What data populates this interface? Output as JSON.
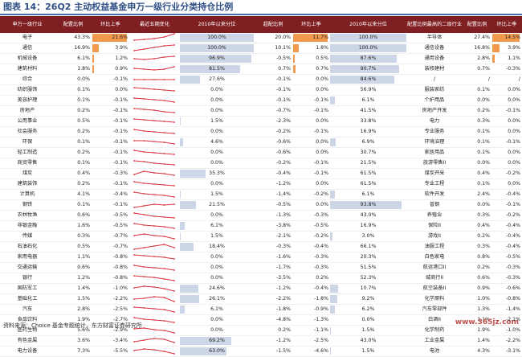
{
  "title": "图表 14：26Q2 主动权益基金申万一级行业分类持仓比例",
  "source": "资料来源：Choice 基金专题统计，东方财富证券研究所",
  "watermark": "www.365jz.com",
  "colors": {
    "header_bg": "#7f1f21",
    "header_text": "#ffffff",
    "bar": "#f19a4e",
    "pct_fill": "#cdd6e6",
    "spark": "#d9303a",
    "title": "#2f4f86"
  },
  "chart_data": {
    "type": "table",
    "columns": [
      "申万一级行业",
      "配置比例",
      "环比上季",
      "最近五期变化",
      "2010年以来分位",
      "超配比例",
      "环比上季",
      "2010年以来分位",
      "配置比例最高的二级行业",
      "配置比例",
      "环比上季"
    ],
    "rows": [
      {
        "industry": "电子",
        "weight": "43.3%",
        "qoq": "21.6%",
        "qoq_v": 21.6,
        "trend": [
          2,
          3,
          4,
          6,
          10
        ],
        "pct": "100.0%",
        "pct_v": 100,
        "over": "20.0%",
        "over_qoq": "11.7%",
        "over_qoq_v": 11.7,
        "over_pct": "100.0%",
        "over_pct_v": 100,
        "sub": "半导体",
        "sub_w": "27.4%",
        "sub_qoq": "14.5%",
        "sub_qoq_v": 14.5
      },
      {
        "industry": "通信",
        "weight": "16.9%",
        "qoq": "3.9%",
        "qoq_v": 3.9,
        "trend": [
          2,
          4,
          6,
          8,
          9
        ],
        "pct": "100.0%",
        "pct_v": 100,
        "over": "10.1%",
        "over_qoq": "1.8%",
        "over_qoq_v": 1.8,
        "over_pct": "100.0%",
        "over_pct_v": 100,
        "sub": "通信设备",
        "sub_w": "16.8%",
        "sub_qoq": "3.9%",
        "sub_qoq_v": 3.9
      },
      {
        "industry": "机械设备",
        "weight": "6.1%",
        "qoq": "1.2%",
        "qoq_v": 1.2,
        "trend": [
          5,
          4,
          5,
          7,
          8
        ],
        "pct": "96.9%",
        "pct_v": 96.9,
        "over": "-0.5%",
        "over_qoq": "0.5%",
        "over_qoq_v": 0.5,
        "over_pct": "87.6%",
        "over_pct_v": 87.6,
        "sub": "通用设备",
        "sub_w": "2.8%",
        "sub_qoq": "1.1%",
        "sub_qoq_v": 1.1
      },
      {
        "industry": "建筑材料",
        "weight": "1.8%",
        "qoq": "0.9%",
        "qoq_v": 0.9,
        "trend": [
          6,
          5,
          4,
          5,
          8
        ],
        "pct": "81.5%",
        "pct_v": 81.5,
        "over": "0.7%",
        "over_qoq": "0.7%",
        "over_qoq_v": 0.7,
        "over_pct": "90.7%",
        "over_pct_v": 90.7,
        "sub": "装修建材",
        "sub_w": "0.7%",
        "sub_qoq": "-0.3%",
        "sub_qoq_v": 0
      },
      {
        "industry": "综合",
        "weight": "0.0%",
        "qoq": "-0.1%",
        "qoq_v": 0,
        "trend": [
          5,
          5,
          5,
          5,
          5
        ],
        "pct": "27.6%",
        "pct_v": 27.6,
        "over": "-0.1%",
        "over_qoq": "0.0%",
        "over_qoq_v": 0,
        "over_pct": "84.6%",
        "over_pct_v": 84.6,
        "sub": "/",
        "sub_w": "/",
        "sub_qoq": "/",
        "sub_qoq_v": 0
      },
      {
        "industry": "纺织服饰",
        "weight": "0.1%",
        "qoq": "0.0%",
        "qoq_v": 0,
        "trend": [
          8,
          7,
          6,
          5,
          4
        ],
        "pct": "0.0%",
        "pct_v": 0,
        "over": "-0.1%",
        "over_qoq": "0.0%",
        "over_qoq_v": 0,
        "over_pct": "56.9%",
        "over_pct_v": 0,
        "sub": "服装家纺",
        "sub_w": "0.1%",
        "sub_qoq": "0.0%",
        "sub_qoq_v": 0
      },
      {
        "industry": "美容护理",
        "weight": "0.1%",
        "qoq": "-0.1%",
        "qoq_v": 0,
        "trend": [
          8,
          7,
          6,
          5,
          3
        ],
        "pct": "0.0%",
        "pct_v": 0,
        "over": "-0.1%",
        "over_qoq": "-0.1%",
        "over_qoq_v": 0,
        "over_pct": "6.1%",
        "over_pct_v": 6.1,
        "sub": "个护用品",
        "sub_w": "0.0%",
        "sub_qoq": "0.0%",
        "sub_qoq_v": 0
      },
      {
        "industry": "房地产",
        "weight": "0.2%",
        "qoq": "-0.1%",
        "qoq_v": 0,
        "trend": [
          8,
          7,
          6,
          4,
          3
        ],
        "pct": "0.0%",
        "pct_v": 0,
        "over": "-0.7%",
        "over_qoq": "-0.1%",
        "over_qoq_v": 0,
        "over_pct": "41.5%",
        "over_pct_v": 0,
        "sub": "房地产开发",
        "sub_w": "0.2%",
        "sub_qoq": "-0.1%",
        "sub_qoq_v": 0
      },
      {
        "industry": "公用事业",
        "weight": "0.5%",
        "qoq": "-0.1%",
        "qoq_v": 0,
        "trend": [
          8,
          7,
          6,
          5,
          4
        ],
        "pct": "1.5%",
        "pct_v": 1.5,
        "over": "-2.3%",
        "over_qoq": "0.0%",
        "over_qoq_v": 0,
        "over_pct": "33.8%",
        "over_pct_v": 0,
        "sub": "电力",
        "sub_w": "0.3%",
        "sub_qoq": "0.0%",
        "sub_qoq_v": 0
      },
      {
        "industry": "社会服务",
        "weight": "0.2%",
        "qoq": "-0.1%",
        "qoq_v": 0,
        "trend": [
          8,
          6,
          5,
          4,
          3
        ],
        "pct": "0.0%",
        "pct_v": 0,
        "over": "-0.2%",
        "over_qoq": "-0.1%",
        "over_qoq_v": 0,
        "over_pct": "16.9%",
        "over_pct_v": 0,
        "sub": "专业服务",
        "sub_w": "0.1%",
        "sub_qoq": "0.0%",
        "sub_qoq_v": 0
      },
      {
        "industry": "环保",
        "weight": "0.1%",
        "qoq": "-0.1%",
        "qoq_v": 0,
        "trend": [
          7,
          7,
          6,
          5,
          3
        ],
        "pct": "4.6%",
        "pct_v": 4.6,
        "over": "-0.6%",
        "over_qoq": "0.0%",
        "over_qoq_v": 0,
        "over_pct": "6.9%",
        "over_pct_v": 6.9,
        "sub": "环境治理",
        "sub_w": "0.1%",
        "sub_qoq": "-0.1%",
        "sub_qoq_v": 0
      },
      {
        "industry": "轻工制造",
        "weight": "0.2%",
        "qoq": "-0.1%",
        "qoq_v": 0,
        "trend": [
          8,
          6,
          5,
          4,
          3
        ],
        "pct": "0.0%",
        "pct_v": 0,
        "over": "-0.6%",
        "over_qoq": "0.0%",
        "over_qoq_v": 0,
        "over_pct": "30.7%",
        "over_pct_v": 0,
        "sub": "家居用品",
        "sub_w": "0.1%",
        "sub_qoq": "0.0%",
        "sub_qoq_v": 0
      },
      {
        "industry": "商贸零售",
        "weight": "0.1%",
        "qoq": "-0.1%",
        "qoq_v": 0,
        "trend": [
          8,
          7,
          5,
          4,
          3
        ],
        "pct": "0.0%",
        "pct_v": 0,
        "over": "-0.2%",
        "over_qoq": "-0.1%",
        "over_qoq_v": 0,
        "over_pct": "21.5%",
        "over_pct_v": 0,
        "sub": "旅游零售II",
        "sub_w": "0.0%",
        "sub_qoq": "0.0%",
        "sub_qoq_v": 0
      },
      {
        "industry": "煤炭",
        "weight": "0.4%",
        "qoq": "-0.3%",
        "qoq_v": 0,
        "trend": [
          4,
          8,
          6,
          5,
          3
        ],
        "pct": "35.3%",
        "pct_v": 35.3,
        "over": "-0.4%",
        "over_qoq": "-0.1%",
        "over_qoq_v": 0,
        "over_pct": "61.5%",
        "over_pct_v": 0,
        "sub": "煤炭开采",
        "sub_w": "0.4%",
        "sub_qoq": "-0.2%",
        "sub_qoq_v": 0
      },
      {
        "industry": "建筑装饰",
        "weight": "0.2%",
        "qoq": "-0.1%",
        "qoq_v": 0,
        "trend": [
          8,
          6,
          5,
          4,
          3
        ],
        "pct": "0.0%",
        "pct_v": 0,
        "over": "-1.2%",
        "over_qoq": "0.0%",
        "over_qoq_v": 0,
        "over_pct": "61.5%",
        "over_pct_v": 0,
        "sub": "专业工程",
        "sub_w": "0.1%",
        "sub_qoq": "0.0%",
        "sub_qoq_v": 0
      },
      {
        "industry": "计算机",
        "weight": "4.1%",
        "qoq": "-0.4%",
        "qoq_v": 0,
        "trend": [
          8,
          6,
          5,
          4,
          2
        ],
        "pct": "1.5%",
        "pct_v": 1.5,
        "over": "-1.4%",
        "over_qoq": "-0.2%",
        "over_qoq_v": 0,
        "over_pct": "6.1%",
        "over_pct_v": 6.1,
        "sub": "软件开发",
        "sub_w": "2.4%",
        "sub_qoq": "-0.4%",
        "sub_qoq_v": 0
      },
      {
        "industry": "钢铁",
        "weight": "0.1%",
        "qoq": "-0.1%",
        "qoq_v": 0,
        "trend": [
          2,
          4,
          6,
          5,
          6
        ],
        "pct": "21.5%",
        "pct_v": 21.5,
        "over": "-0.5%",
        "over_qoq": "0.0%",
        "over_qoq_v": 0,
        "over_pct": "93.8%",
        "over_pct_v": 93.8,
        "sub": "普钢",
        "sub_w": "0.0%",
        "sub_qoq": "-0.1%",
        "sub_qoq_v": 0
      },
      {
        "industry": "农林牧渔",
        "weight": "0.6%",
        "qoq": "-0.5%",
        "qoq_v": 0,
        "trend": [
          8,
          6,
          4,
          3,
          2
        ],
        "pct": "0.0%",
        "pct_v": 0,
        "over": "-1.3%",
        "over_qoq": "-0.3%",
        "over_qoq_v": 0,
        "over_pct": "43.0%",
        "over_pct_v": 0,
        "sub": "养殖业",
        "sub_w": "0.3%",
        "sub_qoq": "-0.2%",
        "sub_qoq_v": 0
      },
      {
        "industry": "非银金融",
        "weight": "1.6%",
        "qoq": "-0.5%",
        "qoq_v": 0,
        "trend": [
          8,
          6,
          5,
          4,
          2
        ],
        "pct": "6.1%",
        "pct_v": 6.1,
        "over": "-3.8%",
        "over_qoq": "-0.5%",
        "over_qoq_v": 0,
        "over_pct": "16.9%",
        "over_pct_v": 0,
        "sub": "保险II",
        "sub_w": "0.4%",
        "sub_qoq": "-0.4%",
        "sub_qoq_v": 0
      },
      {
        "industry": "传媒",
        "weight": "0.3%",
        "qoq": "-0.7%",
        "qoq_v": 0,
        "trend": [
          6,
          8,
          6,
          5,
          2
        ],
        "pct": "1.5%",
        "pct_v": 1.5,
        "over": "-2.1%",
        "over_qoq": "-0.2%",
        "over_qoq_v": 0,
        "over_pct": "3.0%",
        "over_pct_v": 3.0,
        "sub": "游戏II",
        "sub_w": "0.2%",
        "sub_qoq": "-0.4%",
        "sub_qoq_v": 0
      },
      {
        "industry": "石油石化",
        "weight": "0.5%",
        "qoq": "-0.7%",
        "qoq_v": 0,
        "trend": [
          2,
          4,
          6,
          8,
          4
        ],
        "pct": "18.4%",
        "pct_v": 18.4,
        "over": "-0.3%",
        "over_qoq": "-0.4%",
        "over_qoq_v": 0,
        "over_pct": "66.1%",
        "over_pct_v": 0,
        "sub": "油服工程",
        "sub_w": "0.3%",
        "sub_qoq": "-0.4%",
        "sub_qoq_v": 0
      },
      {
        "industry": "家用电器",
        "weight": "1.1%",
        "qoq": "-0.8%",
        "qoq_v": 0,
        "trend": [
          8,
          7,
          6,
          5,
          3
        ],
        "pct": "0.0%",
        "pct_v": 0,
        "over": "-1.6%",
        "over_qoq": "-0.3%",
        "over_qoq_v": 0,
        "over_pct": "20.3%",
        "over_pct_v": 0,
        "sub": "白色家电",
        "sub_w": "0.8%",
        "sub_qoq": "-0.5%",
        "sub_qoq_v": 0
      },
      {
        "industry": "交通运输",
        "weight": "0.6%",
        "qoq": "-0.8%",
        "qoq_v": 0,
        "trend": [
          8,
          6,
          5,
          4,
          2
        ],
        "pct": "0.0%",
        "pct_v": 0,
        "over": "-1.7%",
        "over_qoq": "-0.3%",
        "over_qoq_v": 0,
        "over_pct": "51.5%",
        "over_pct_v": 0,
        "sub": "航运港口II",
        "sub_w": "0.2%",
        "sub_qoq": "-0.3%",
        "sub_qoq_v": 0
      },
      {
        "industry": "银行",
        "weight": "1.2%",
        "qoq": "-0.8%",
        "qoq_v": 0,
        "trend": [
          8,
          7,
          6,
          4,
          2
        ],
        "pct": "0.0%",
        "pct_v": 0,
        "over": "-3.5%",
        "over_qoq": "0.2%",
        "over_qoq_v": 0,
        "over_pct": "52.3%",
        "over_pct_v": 0,
        "sub": "城商行II",
        "sub_w": "0.6%",
        "sub_qoq": "-0.3%",
        "sub_qoq_v": 0
      },
      {
        "industry": "国防军工",
        "weight": "1.4%",
        "qoq": "-1.0%",
        "qoq_v": 0,
        "trend": [
          6,
          8,
          7,
          5,
          2
        ],
        "pct": "24.6%",
        "pct_v": 24.6,
        "over": "-1.2%",
        "over_qoq": "-0.4%",
        "over_qoq_v": 0,
        "over_pct": "10.7%",
        "over_pct_v": 10.7,
        "sub": "航空装备II",
        "sub_w": "0.9%",
        "sub_qoq": "-0.6%",
        "sub_qoq_v": 0
      },
      {
        "industry": "基础化工",
        "weight": "1.5%",
        "qoq": "-2.2%",
        "qoq_v": 0,
        "trend": [
          5,
          6,
          8,
          7,
          2
        ],
        "pct": "26.1%",
        "pct_v": 26.1,
        "over": "-2.2%",
        "over_qoq": "-1.8%",
        "over_qoq_v": 0,
        "over_pct": "9.2%",
        "over_pct_v": 9.2,
        "sub": "化学原料",
        "sub_w": "1.0%",
        "sub_qoq": "-0.8%",
        "sub_qoq_v": 0
      },
      {
        "industry": "汽车",
        "weight": "2.8%",
        "qoq": "-2.5%",
        "qoq_v": 0,
        "trend": [
          8,
          7,
          6,
          5,
          2
        ],
        "pct": "6.1%",
        "pct_v": 6.1,
        "over": "-1.8%",
        "over_qoq": "-0.9%",
        "over_qoq_v": 0,
        "over_pct": "6.2%",
        "over_pct_v": 6.2,
        "sub": "汽车零部件",
        "sub_w": "1.3%",
        "sub_qoq": "-1.4%",
        "sub_qoq_v": 0
      },
      {
        "industry": "食品饮料",
        "weight": "1.9%",
        "qoq": "-2.7%",
        "qoq_v": 0,
        "trend": [
          8,
          6,
          5,
          4,
          2
        ],
        "pct": "0.0%",
        "pct_v": 0,
        "over": "-4.8%",
        "over_qoq": "-1.3%",
        "over_qoq_v": 0,
        "over_pct": "0.0%",
        "over_pct_v": 0,
        "sub": "白酒II",
        "sub_w": "1.1%",
        "sub_qoq": "-2.1%",
        "sub_qoq_v": 0
      },
      {
        "industry": "医药生物",
        "weight": "5.6%",
        "qoq": "-2.9%",
        "qoq_v": 0,
        "trend": [
          7,
          8,
          6,
          5,
          2
        ],
        "pct": "0.0%",
        "pct_v": 0,
        "over": "0.2%",
        "over_qoq": "-1.1%",
        "over_qoq_v": 0,
        "over_pct": "1.5%",
        "over_pct_v": 1.5,
        "sub": "化学制药",
        "sub_w": "1.9%",
        "sub_qoq": "-1.0%",
        "sub_qoq_v": 0
      },
      {
        "industry": "有色金属",
        "weight": "3.6%",
        "qoq": "-3.4%",
        "qoq_v": 0,
        "trend": [
          4,
          6,
          8,
          7,
          3
        ],
        "pct": "69.2%",
        "pct_v": 69.2,
        "over": "-1.2%",
        "over_qoq": "-2.5%",
        "over_qoq_v": 0,
        "over_pct": "43.0%",
        "over_pct_v": 0,
        "sub": "工业金属",
        "sub_w": "1.4%",
        "sub_qoq": "-2.2%",
        "sub_qoq_v": 0
      },
      {
        "industry": "电力设备",
        "weight": "7.3%",
        "qoq": "-5.5%",
        "qoq_v": 0,
        "trend": [
          6,
          8,
          7,
          5,
          2
        ],
        "pct": "63.0%",
        "pct_v": 63.0,
        "over": "-1.5%",
        "over_qoq": "-4.6%",
        "over_qoq_v": 0,
        "over_pct": "1.5%",
        "over_pct_v": 1.5,
        "sub": "电池",
        "sub_w": "4.3%",
        "sub_qoq": "-3.1%",
        "sub_qoq_v": 0
      }
    ]
  }
}
